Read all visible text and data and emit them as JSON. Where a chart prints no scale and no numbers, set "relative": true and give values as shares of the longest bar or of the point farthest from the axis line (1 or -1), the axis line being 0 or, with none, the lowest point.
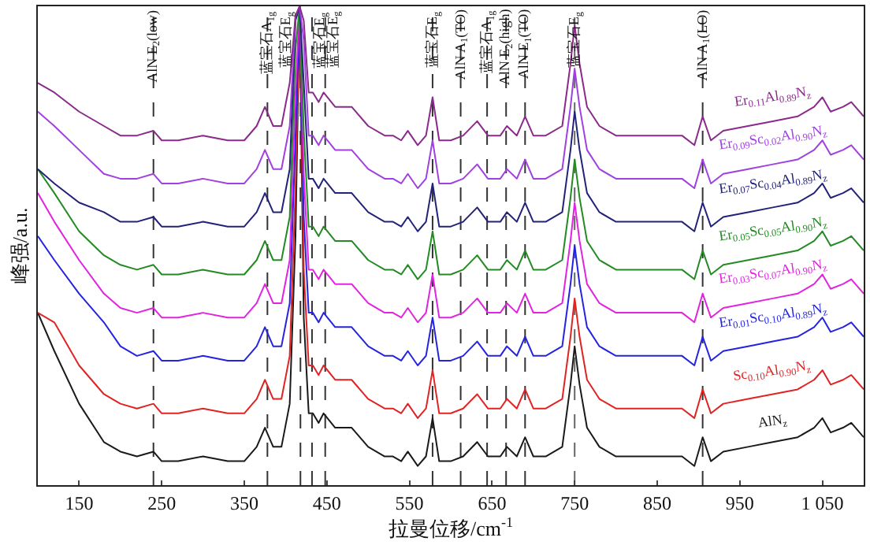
{
  "chart_data": {
    "type": "line",
    "relative": true,
    "xlabel": "拉曼位移/cm$^{-1}$",
    "ylabel": "峰强/a.u.",
    "x": [
      100,
      120,
      150,
      180,
      200,
      220,
      240,
      250,
      270,
      300,
      330,
      350,
      365,
      375,
      385,
      395,
      405,
      412,
      417,
      422,
      428,
      433,
      440,
      446,
      460,
      480,
      500,
      520,
      530,
      540,
      548,
      560,
      570,
      578,
      586,
      600,
      615,
      632,
      645,
      660,
      668,
      680,
      690,
      700,
      715,
      735,
      745,
      750,
      756,
      765,
      780,
      800,
      830,
      860,
      880,
      895,
      905,
      915,
      930,
      960,
      990,
      1020,
      1040,
      1050,
      1060,
      1075,
      1085,
      1100
    ],
    "xlim": [
      100,
      1100
    ],
    "xticks": [
      150,
      250,
      350,
      450,
      550,
      650,
      750,
      850,
      950,
      {
        "value": 1050,
        "label": "1 050"
      }
    ],
    "grid": false,
    "legend": false,
    "marker": "none",
    "line_style": "solid",
    "series": [
      {
        "name": "AlN$_{z}$",
        "color": "#1a1a1a",
        "values": [
          0.36,
          0.28,
          0.17,
          0.09,
          0.07,
          0.06,
          0.07,
          0.05,
          0.05,
          0.06,
          0.05,
          0.05,
          0.08,
          0.12,
          0.08,
          0.08,
          0.17,
          0.52,
          1.0,
          0.35,
          0.15,
          0.15,
          0.13,
          0.15,
          0.12,
          0.12,
          0.08,
          0.06,
          0.06,
          0.05,
          0.07,
          0.04,
          0.06,
          0.14,
          0.05,
          0.05,
          0.06,
          0.09,
          0.06,
          0.06,
          0.08,
          0.06,
          0.1,
          0.06,
          0.06,
          0.08,
          0.21,
          0.29,
          0.21,
          0.12,
          0.08,
          0.06,
          0.06,
          0.06,
          0.06,
          0.04,
          0.1,
          0.05,
          0.07,
          0.08,
          0.09,
          0.1,
          0.12,
          0.14,
          0.11,
          0.12,
          0.13,
          0.1
        ]
      },
      {
        "name": "Sc$_{0.10}$Al$_{0.90}$N$_{z}$",
        "color": "#e02424",
        "values": [
          0.36,
          0.34,
          0.25,
          0.19,
          0.17,
          0.16,
          0.17,
          0.15,
          0.15,
          0.16,
          0.15,
          0.15,
          0.18,
          0.22,
          0.18,
          0.18,
          0.27,
          0.62,
          1.0,
          0.45,
          0.25,
          0.25,
          0.23,
          0.25,
          0.22,
          0.22,
          0.18,
          0.16,
          0.16,
          0.15,
          0.17,
          0.14,
          0.16,
          0.24,
          0.15,
          0.15,
          0.16,
          0.19,
          0.16,
          0.16,
          0.18,
          0.16,
          0.2,
          0.16,
          0.16,
          0.18,
          0.31,
          0.39,
          0.31,
          0.22,
          0.18,
          0.16,
          0.16,
          0.16,
          0.16,
          0.14,
          0.2,
          0.15,
          0.17,
          0.18,
          0.19,
          0.2,
          0.22,
          0.24,
          0.21,
          0.22,
          0.23,
          0.2
        ]
      },
      {
        "name": "Er$_{0.01}$Sc$_{0.10}$Al$_{0.89}$N$_{z}$",
        "color": "#2424e0",
        "values": [
          0.52,
          0.47,
          0.4,
          0.34,
          0.29,
          0.27,
          0.28,
          0.26,
          0.26,
          0.27,
          0.26,
          0.26,
          0.29,
          0.33,
          0.29,
          0.29,
          0.38,
          0.73,
          1.0,
          0.56,
          0.36,
          0.36,
          0.34,
          0.36,
          0.33,
          0.33,
          0.29,
          0.27,
          0.27,
          0.26,
          0.28,
          0.25,
          0.27,
          0.35,
          0.26,
          0.26,
          0.27,
          0.3,
          0.27,
          0.27,
          0.29,
          0.27,
          0.31,
          0.27,
          0.27,
          0.29,
          0.42,
          0.5,
          0.42,
          0.33,
          0.29,
          0.27,
          0.27,
          0.27,
          0.27,
          0.25,
          0.31,
          0.26,
          0.28,
          0.29,
          0.3,
          0.31,
          0.33,
          0.35,
          0.32,
          0.33,
          0.34,
          0.31
        ]
      },
      {
        "name": "Er$_{0.03}$Sc$_{0.07}$Al$_{0.90}$N$_{z}$",
        "color": "#e024e0",
        "values": [
          0.61,
          0.55,
          0.47,
          0.4,
          0.37,
          0.36,
          0.37,
          0.35,
          0.35,
          0.36,
          0.35,
          0.35,
          0.38,
          0.42,
          0.38,
          0.38,
          0.47,
          0.82,
          1.0,
          0.65,
          0.45,
          0.45,
          0.43,
          0.45,
          0.42,
          0.42,
          0.38,
          0.36,
          0.36,
          0.35,
          0.37,
          0.34,
          0.36,
          0.44,
          0.35,
          0.35,
          0.36,
          0.39,
          0.36,
          0.36,
          0.38,
          0.36,
          0.4,
          0.36,
          0.36,
          0.38,
          0.51,
          0.59,
          0.51,
          0.42,
          0.38,
          0.36,
          0.36,
          0.36,
          0.36,
          0.34,
          0.4,
          0.35,
          0.37,
          0.38,
          0.39,
          0.4,
          0.42,
          0.44,
          0.41,
          0.42,
          0.43,
          0.4
        ]
      },
      {
        "name": "Er$_{0.05}$Sc$_{0.05}$Al$_{0.90}$N$_{z}$",
        "color": "#248a24",
        "values": [
          0.66,
          0.61,
          0.53,
          0.48,
          0.46,
          0.45,
          0.46,
          0.44,
          0.44,
          0.45,
          0.44,
          0.44,
          0.47,
          0.51,
          0.47,
          0.47,
          0.56,
          0.91,
          1.0,
          0.74,
          0.54,
          0.54,
          0.52,
          0.54,
          0.51,
          0.51,
          0.47,
          0.45,
          0.45,
          0.44,
          0.46,
          0.43,
          0.45,
          0.53,
          0.44,
          0.44,
          0.45,
          0.48,
          0.45,
          0.45,
          0.47,
          0.45,
          0.49,
          0.45,
          0.45,
          0.47,
          0.6,
          0.68,
          0.6,
          0.51,
          0.47,
          0.45,
          0.45,
          0.45,
          0.45,
          0.43,
          0.49,
          0.44,
          0.46,
          0.47,
          0.48,
          0.49,
          0.51,
          0.53,
          0.5,
          0.51,
          0.52,
          0.49
        ]
      },
      {
        "name": "Er$_{0.07}$Sc$_{0.04}$Al$_{0.89}$N$_{z}$",
        "color": "#22227a",
        "values": [
          0.66,
          0.63,
          0.59,
          0.57,
          0.55,
          0.55,
          0.56,
          0.54,
          0.54,
          0.55,
          0.54,
          0.54,
          0.57,
          0.61,
          0.57,
          0.57,
          0.66,
          0.97,
          1.0,
          0.84,
          0.64,
          0.64,
          0.62,
          0.64,
          0.61,
          0.61,
          0.57,
          0.55,
          0.55,
          0.54,
          0.56,
          0.53,
          0.55,
          0.63,
          0.54,
          0.54,
          0.55,
          0.58,
          0.55,
          0.55,
          0.57,
          0.55,
          0.59,
          0.55,
          0.55,
          0.57,
          0.7,
          0.78,
          0.7,
          0.61,
          0.57,
          0.55,
          0.55,
          0.55,
          0.55,
          0.53,
          0.59,
          0.54,
          0.56,
          0.57,
          0.58,
          0.59,
          0.61,
          0.63,
          0.6,
          0.61,
          0.62,
          0.59
        ]
      },
      {
        "name": "Er$_{0.09}$Sc$_{0.02}$Al$_{0.90}$N$_{z}$",
        "color": "#a040e0",
        "values": [
          0.78,
          0.75,
          0.7,
          0.65,
          0.64,
          0.64,
          0.65,
          0.63,
          0.63,
          0.64,
          0.63,
          0.63,
          0.66,
          0.7,
          0.66,
          0.66,
          0.75,
          0.98,
          1.0,
          0.93,
          0.73,
          0.73,
          0.71,
          0.73,
          0.7,
          0.7,
          0.66,
          0.64,
          0.64,
          0.63,
          0.65,
          0.62,
          0.64,
          0.72,
          0.63,
          0.63,
          0.64,
          0.67,
          0.64,
          0.64,
          0.66,
          0.64,
          0.68,
          0.64,
          0.64,
          0.66,
          0.79,
          0.87,
          0.79,
          0.7,
          0.66,
          0.64,
          0.64,
          0.64,
          0.64,
          0.62,
          0.68,
          0.63,
          0.65,
          0.66,
          0.67,
          0.68,
          0.7,
          0.72,
          0.69,
          0.7,
          0.71,
          0.68
        ]
      },
      {
        "name": "Er$_{0.11}$Al$_{0.89}$N$_{z}$",
        "color": "#8a2a8a",
        "values": [
          0.84,
          0.82,
          0.78,
          0.75,
          0.73,
          0.73,
          0.74,
          0.72,
          0.72,
          0.73,
          0.72,
          0.72,
          0.75,
          0.79,
          0.75,
          0.75,
          0.84,
          0.98,
          1.0,
          0.97,
          0.82,
          0.82,
          0.8,
          0.82,
          0.79,
          0.79,
          0.75,
          0.73,
          0.73,
          0.72,
          0.74,
          0.71,
          0.73,
          0.81,
          0.72,
          0.72,
          0.73,
          0.76,
          0.73,
          0.73,
          0.75,
          0.73,
          0.77,
          0.73,
          0.73,
          0.75,
          0.88,
          0.96,
          0.88,
          0.79,
          0.75,
          0.73,
          0.73,
          0.73,
          0.73,
          0.71,
          0.77,
          0.72,
          0.74,
          0.75,
          0.76,
          0.77,
          0.79,
          0.81,
          0.78,
          0.79,
          0.8,
          0.77
        ]
      }
    ],
    "ref_lines": [
      {
        "axis": "x",
        "value": 240,
        "label": "AlN E$_{2}$(low)",
        "color": "#333333",
        "line_style": "dashed"
      },
      {
        "axis": "x",
        "value": 378,
        "label": "蓝宝石A$_{1g}$",
        "color": "#333333",
        "line_style": "dashed"
      },
      {
        "axis": "x",
        "value": 418,
        "label": "蓝宝石E$_{g}$",
        "color": "#333333",
        "line_style": "dashed"
      },
      {
        "axis": "x",
        "value": 432,
        "label": "蓝宝石E$_{g}$",
        "color": "#333333",
        "line_style": "dashed"
      },
      {
        "axis": "x",
        "value": 448,
        "label": "蓝宝石E$_{g}$",
        "color": "#333333",
        "line_style": "dashed"
      },
      {
        "axis": "x",
        "value": 578,
        "label": "蓝宝石E$_{g}$",
        "color": "#333333",
        "line_style": "dashed"
      },
      {
        "axis": "x",
        "value": 612,
        "label": "AlN A$_{1}$(TO)",
        "color": "#333333",
        "line_style": "dashed"
      },
      {
        "axis": "x",
        "value": 644,
        "label": "蓝宝石A$_{1g}$",
        "color": "#333333",
        "line_style": "dashed"
      },
      {
        "axis": "x",
        "value": 667,
        "label": "AlN E$_{2}$(high)",
        "color": "#333333",
        "line_style": "dashed"
      },
      {
        "axis": "x",
        "value": 690,
        "label": "AlN E$_{1}$(TO)",
        "color": "#333333",
        "line_style": "dashed"
      },
      {
        "axis": "x",
        "value": 750,
        "label": "蓝宝石E$_{g}$",
        "color": "#666666",
        "line_style": "dashed"
      },
      {
        "axis": "x",
        "value": 905,
        "label": "AlN A$_{1}$(LO)",
        "color": "#333333",
        "line_style": "dashed"
      }
    ]
  }
}
